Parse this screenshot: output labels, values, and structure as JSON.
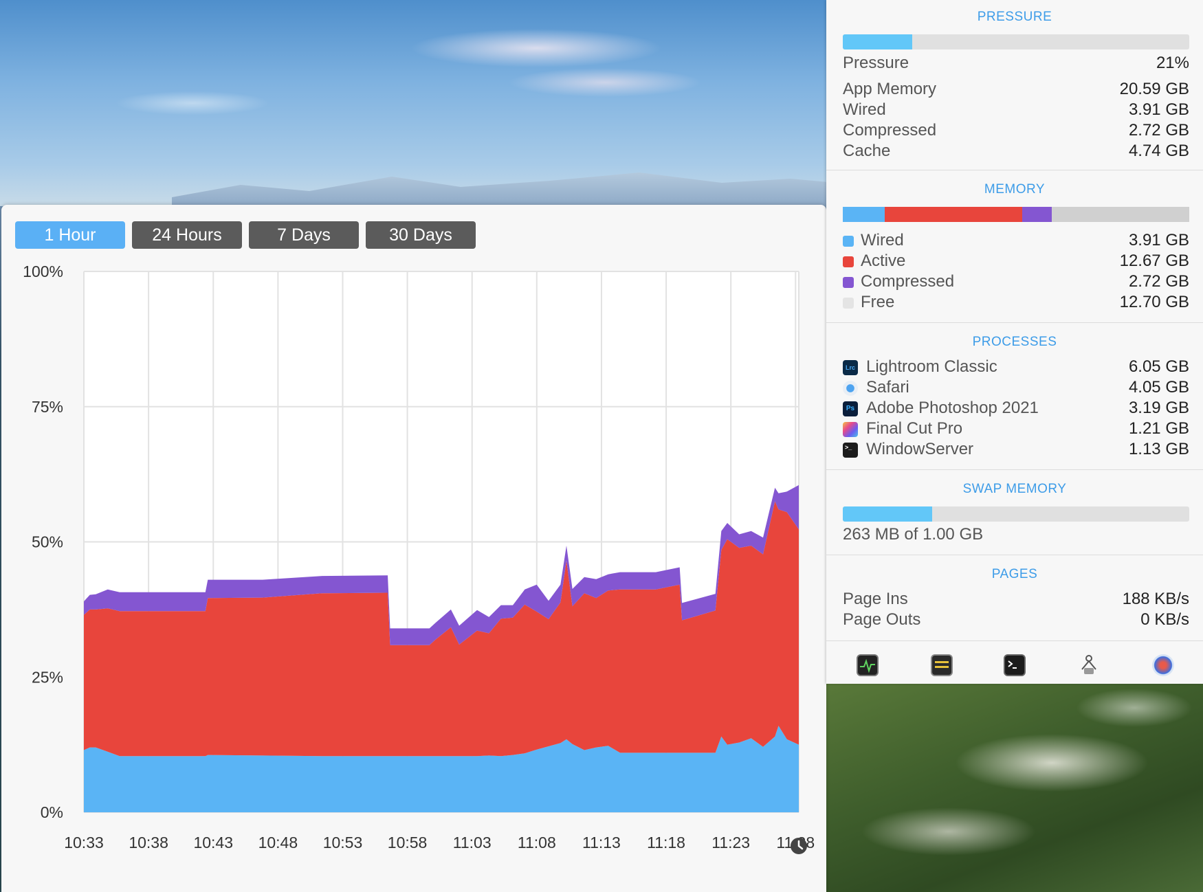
{
  "window": {
    "ranges": [
      "1 Hour",
      "24 Hours",
      "7 Days",
      "30 Days"
    ],
    "active_range": "1 Hour"
  },
  "chart_data": {
    "type": "area",
    "stacked": true,
    "y_ticks": [
      "100%",
      "75%",
      "50%",
      "25%",
      "0%"
    ],
    "x_ticks": [
      "10:33",
      "10:38",
      "10:43",
      "10:48",
      "10:53",
      "10:58",
      "11:03",
      "11:08",
      "11:13",
      "11:18",
      "11:23",
      "11:28"
    ],
    "ylim": [
      0,
      100
    ],
    "grid": true,
    "x": [
      0,
      0.5,
      1,
      2,
      3,
      10.2,
      10.4,
      15,
      20,
      25.5,
      25.7,
      29,
      29.5,
      30.8,
      31.5,
      33,
      34,
      35,
      36,
      37,
      38,
      39,
      40,
      40.5,
      41,
      42,
      43,
      44,
      45,
      48,
      50,
      50.2,
      53,
      53.5,
      54,
      55,
      56,
      57,
      58,
      58.3,
      59,
      60
    ],
    "series": [
      {
        "color": "#5ab4f5",
        "values": [
          11.5,
          12,
          12,
          11.2,
          10.4,
          10.4,
          10.6,
          10.5,
          10.4,
          10.4,
          10.4,
          10.4,
          10.4,
          10.4,
          10.4,
          10.4,
          10.5,
          10.4,
          10.6,
          10.9,
          11.6,
          12.2,
          12.8,
          13.5,
          12.6,
          11.5,
          12.0,
          12.3,
          11.0,
          11.0,
          11.0,
          11.0,
          11.0,
          14.0,
          12.5,
          12.9,
          13.7,
          12.1,
          14.0,
          16.0,
          13.5,
          12.5
        ]
      },
      {
        "color": "#e8453c",
        "values": [
          25,
          25.5,
          25.5,
          26.5,
          26.8,
          26.8,
          29,
          29.2,
          30.1,
          30.2,
          20.5,
          20.5,
          21.5,
          23.8,
          20.6,
          23.2,
          22.6,
          25.4,
          25.4,
          27.5,
          25.5,
          23.5,
          26.0,
          33.0,
          25.5,
          29.0,
          27.6,
          28.7,
          30.2,
          30.2,
          31.1,
          24.5,
          26.3,
          34.5,
          38.0,
          36.0,
          35.6,
          35.6,
          43.5,
          40.0,
          42.0,
          39.8
        ]
      },
      {
        "color": "#8456d1",
        "values": [
          2.5,
          2.7,
          2.8,
          3.5,
          3.5,
          3.5,
          3.4,
          3.3,
          3.2,
          3.2,
          3.1,
          3.1,
          3.1,
          3.3,
          3.5,
          3.8,
          3.0,
          2.5,
          2.3,
          2.8,
          5.0,
          3.4,
          3.3,
          2.8,
          3.2,
          3.0,
          3.5,
          3.0,
          3.2,
          3.2,
          3.2,
          3.2,
          3.1,
          3.5,
          3.0,
          2.5,
          2.7,
          3.1,
          2.5,
          3.0,
          3.8,
          8.2
        ]
      }
    ]
  },
  "panel": {
    "pressure": {
      "title": "PRESSURE",
      "fill": 0.2,
      "rows": [
        {
          "label": "Pressure",
          "value": "21%"
        },
        {
          "label": "App Memory",
          "value": "20.59 GB"
        },
        {
          "label": "Wired",
          "value": "3.91 GB"
        },
        {
          "label": "Compressed",
          "value": "2.72 GB"
        },
        {
          "label": "Cache",
          "value": "4.74 GB"
        }
      ]
    },
    "memory": {
      "title": "MEMORY",
      "segments": [
        {
          "name": "Wired",
          "fraction": 0.122,
          "color": "#5ab4f5"
        },
        {
          "name": "Active",
          "fraction": 0.396,
          "color": "#e8453c"
        },
        {
          "name": "Compressed",
          "fraction": 0.085,
          "color": "#8456d1"
        },
        {
          "name": "Free",
          "fraction": 0.397,
          "color": "#d0d0d0"
        }
      ],
      "rows": [
        {
          "label": "Wired",
          "value": "3.91 GB",
          "color": "#5ab4f5"
        },
        {
          "label": "Active",
          "value": "12.67 GB",
          "color": "#e8453c"
        },
        {
          "label": "Compressed",
          "value": "2.72 GB",
          "color": "#8456d1"
        },
        {
          "label": "Free",
          "value": "12.70 GB",
          "color": "#e4e4e4"
        }
      ]
    },
    "processes": {
      "title": "PROCESSES",
      "rows": [
        {
          "label": "Lightroom Classic",
          "value": "6.05 GB",
          "icon": "lightroom-icon",
          "glyph": "Lrc"
        },
        {
          "label": "Safari",
          "value": "4.05 GB",
          "icon": "safari-icon",
          "glyph": ""
        },
        {
          "label": "Adobe Photoshop 2021",
          "value": "3.19 GB",
          "icon": "photoshop-icon",
          "glyph": "Ps"
        },
        {
          "label": "Final Cut Pro",
          "value": "1.21 GB",
          "icon": "final-cut-pro-icon",
          "glyph": ""
        },
        {
          "label": "WindowServer",
          "value": "1.13 GB",
          "icon": "terminal-icon",
          "glyph": ">_"
        }
      ]
    },
    "swap": {
      "title": "SWAP MEMORY",
      "fill": 0.257,
      "text": "263 MB of 1.00 GB"
    },
    "pages": {
      "title": "PAGES",
      "rows": [
        {
          "label": "Page Ins",
          "value": "188 KB/s"
        },
        {
          "label": "Page Outs",
          "value": "0 KB/s"
        }
      ]
    },
    "dock": [
      "activity-monitor-icon",
      "console-icon",
      "terminal-icon",
      "system-information-icon",
      "disk-utility-icon"
    ]
  }
}
